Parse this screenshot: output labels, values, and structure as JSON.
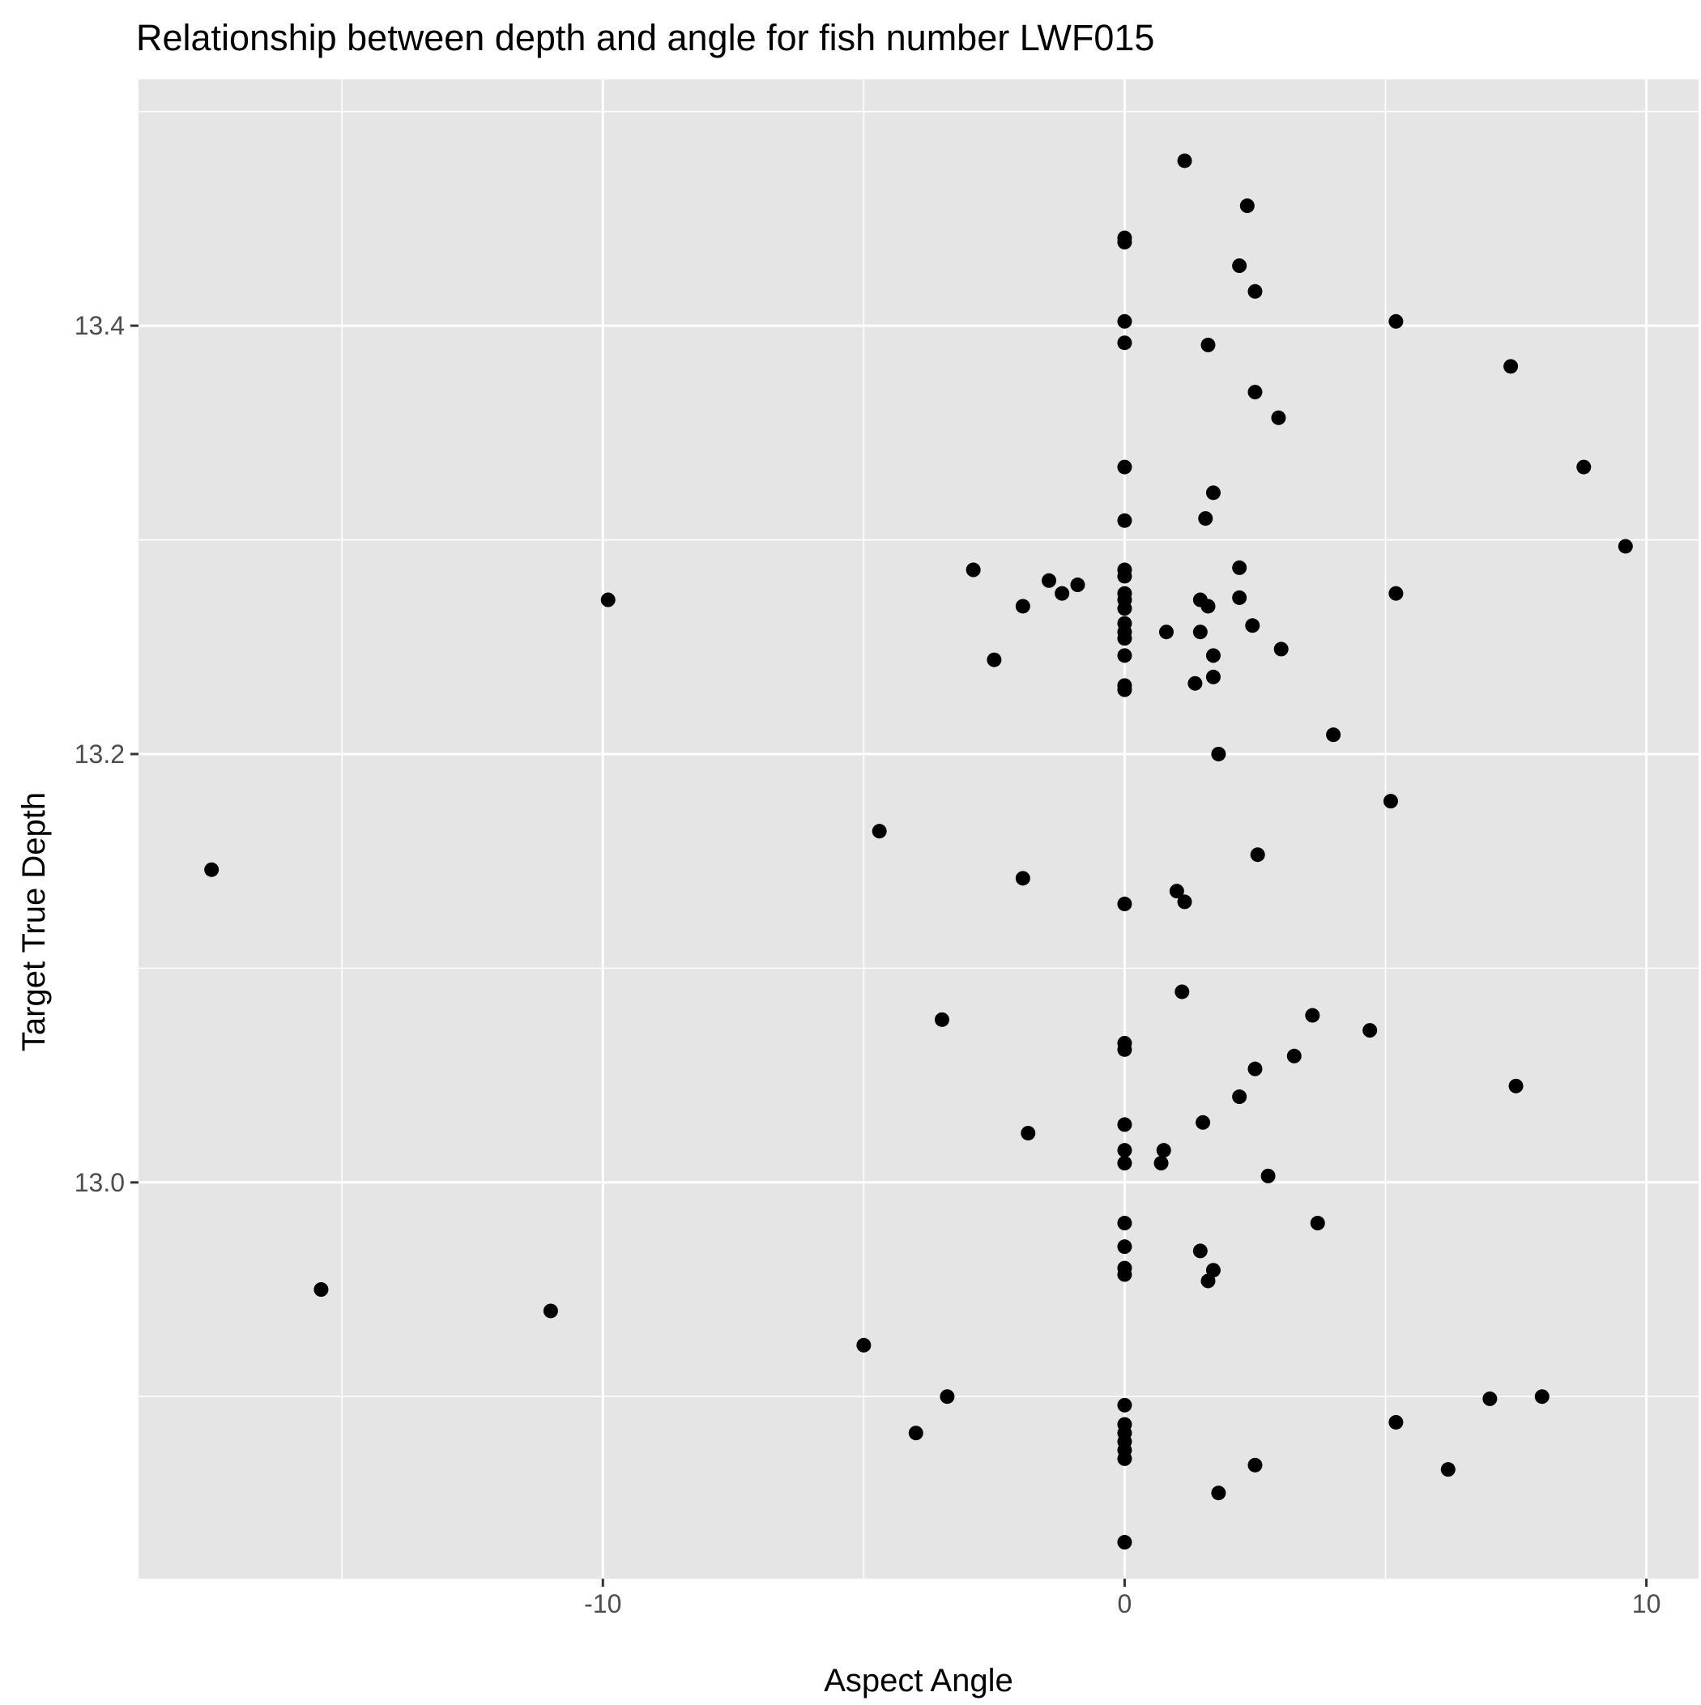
{
  "chart_data": {
    "type": "scatter",
    "title": "Relationship between depth and angle for fish number LWF015",
    "xlabel": "Aspect Angle",
    "ylabel": "Target True Depth",
    "xlim": [
      -18.9,
      11.0
    ],
    "ylim": [
      12.815,
      13.515
    ],
    "x_ticks": [
      -10,
      0,
      10
    ],
    "x_tick_labels": [
      "-10",
      "0",
      "10"
    ],
    "y_ticks": [
      13.0,
      13.2,
      13.4
    ],
    "y_tick_labels": [
      "13.0",
      "13.2",
      "13.4"
    ],
    "grid": true,
    "legend": "none",
    "colors": {
      "panel": "#e5e5e5",
      "grid": "#ffffff",
      "point": "#000000",
      "tick": "#333333"
    },
    "points": [
      {
        "x": 1.15,
        "y": 13.477
      },
      {
        "x": 2.35,
        "y": 13.456
      },
      {
        "x": 0.0,
        "y": 13.441
      },
      {
        "x": 0.0,
        "y": 13.439
      },
      {
        "x": 2.2,
        "y": 13.428
      },
      {
        "x": 2.5,
        "y": 13.416
      },
      {
        "x": 0.0,
        "y": 13.402
      },
      {
        "x": 5.2,
        "y": 13.402
      },
      {
        "x": 0.0,
        "y": 13.392
      },
      {
        "x": 1.6,
        "y": 13.391
      },
      {
        "x": 7.4,
        "y": 13.381
      },
      {
        "x": 2.5,
        "y": 13.369
      },
      {
        "x": 2.95,
        "y": 13.357
      },
      {
        "x": 0.0,
        "y": 13.334
      },
      {
        "x": 8.8,
        "y": 13.334
      },
      {
        "x": 1.7,
        "y": 13.322
      },
      {
        "x": 0.0,
        "y": 13.309
      },
      {
        "x": 1.55,
        "y": 13.31
      },
      {
        "x": 9.6,
        "y": 13.297
      },
      {
        "x": -2.9,
        "y": 13.286
      },
      {
        "x": 0.0,
        "y": 13.286
      },
      {
        "x": 0.0,
        "y": 13.283
      },
      {
        "x": 2.2,
        "y": 13.287
      },
      {
        "x": -1.45,
        "y": 13.281
      },
      {
        "x": -0.9,
        "y": 13.279
      },
      {
        "x": -1.2,
        "y": 13.275
      },
      {
        "x": 0.0,
        "y": 13.275
      },
      {
        "x": 0.0,
        "y": 13.272
      },
      {
        "x": 1.45,
        "y": 13.272
      },
      {
        "x": 2.2,
        "y": 13.273
      },
      {
        "x": 5.2,
        "y": 13.275
      },
      {
        "x": -9.9,
        "y": 13.272
      },
      {
        "x": -1.95,
        "y": 13.269
      },
      {
        "x": 0.0,
        "y": 13.268
      },
      {
        "x": 1.6,
        "y": 13.269
      },
      {
        "x": 0.0,
        "y": 13.261
      },
      {
        "x": 2.45,
        "y": 13.26
      },
      {
        "x": 0.0,
        "y": 13.257
      },
      {
        "x": 0.8,
        "y": 13.257
      },
      {
        "x": 1.45,
        "y": 13.257
      },
      {
        "x": 0.0,
        "y": 13.254
      },
      {
        "x": 3.0,
        "y": 13.249
      },
      {
        "x": 0.0,
        "y": 13.246
      },
      {
        "x": 1.7,
        "y": 13.246
      },
      {
        "x": -2.5,
        "y": 13.244
      },
      {
        "x": 1.7,
        "y": 13.236
      },
      {
        "x": 1.35,
        "y": 13.233
      },
      {
        "x": 0.0,
        "y": 13.232
      },
      {
        "x": 0.0,
        "y": 13.23
      },
      {
        "x": 4.0,
        "y": 13.209
      },
      {
        "x": 1.8,
        "y": 13.2
      },
      {
        "x": 5.1,
        "y": 13.178
      },
      {
        "x": -4.7,
        "y": 13.164
      },
      {
        "x": 2.55,
        "y": 13.153
      },
      {
        "x": -17.5,
        "y": 13.146
      },
      {
        "x": -1.95,
        "y": 13.142
      },
      {
        "x": 1.0,
        "y": 13.136
      },
      {
        "x": 0.0,
        "y": 13.13
      },
      {
        "x": 1.15,
        "y": 13.131
      },
      {
        "x": 1.1,
        "y": 13.089
      },
      {
        "x": 3.6,
        "y": 13.078
      },
      {
        "x": -3.5,
        "y": 13.076
      },
      {
        "x": 4.7,
        "y": 13.071
      },
      {
        "x": 0.0,
        "y": 13.065
      },
      {
        "x": 0.0,
        "y": 13.062
      },
      {
        "x": 3.25,
        "y": 13.059
      },
      {
        "x": 2.5,
        "y": 13.053
      },
      {
        "x": 7.5,
        "y": 13.045
      },
      {
        "x": 2.2,
        "y": 13.04
      },
      {
        "x": 1.5,
        "y": 13.028
      },
      {
        "x": 0.0,
        "y": 13.027
      },
      {
        "x": -1.85,
        "y": 13.023
      },
      {
        "x": 0.0,
        "y": 13.015
      },
      {
        "x": 0.75,
        "y": 13.015
      },
      {
        "x": 0.0,
        "y": 13.009
      },
      {
        "x": 0.7,
        "y": 13.009
      },
      {
        "x": 2.75,
        "y": 13.003
      },
      {
        "x": 0.0,
        "y": 12.981
      },
      {
        "x": 3.7,
        "y": 12.981
      },
      {
        "x": 0.0,
        "y": 12.97
      },
      {
        "x": 1.45,
        "y": 12.968
      },
      {
        "x": 1.7,
        "y": 12.959
      },
      {
        "x": 0.0,
        "y": 12.96
      },
      {
        "x": 0.0,
        "y": 12.957
      },
      {
        "x": 1.6,
        "y": 12.954
      },
      {
        "x": -15.4,
        "y": 12.95
      },
      {
        "x": -11.0,
        "y": 12.94
      },
      {
        "x": -5.0,
        "y": 12.924
      },
      {
        "x": -3.4,
        "y": 12.9
      },
      {
        "x": 7.0,
        "y": 12.899
      },
      {
        "x": 8.0,
        "y": 12.9
      },
      {
        "x": 0.0,
        "y": 12.896
      },
      {
        "x": 5.2,
        "y": 12.888
      },
      {
        "x": 0.0,
        "y": 12.887
      },
      {
        "x": 0.0,
        "y": 12.883
      },
      {
        "x": -4.0,
        "y": 12.883
      },
      {
        "x": 0.0,
        "y": 12.879
      },
      {
        "x": 0.0,
        "y": 12.875
      },
      {
        "x": 0.0,
        "y": 12.871
      },
      {
        "x": 2.5,
        "y": 12.868
      },
      {
        "x": 6.2,
        "y": 12.866
      },
      {
        "x": 1.8,
        "y": 12.855
      },
      {
        "x": 0.0,
        "y": 12.832
      }
    ]
  }
}
